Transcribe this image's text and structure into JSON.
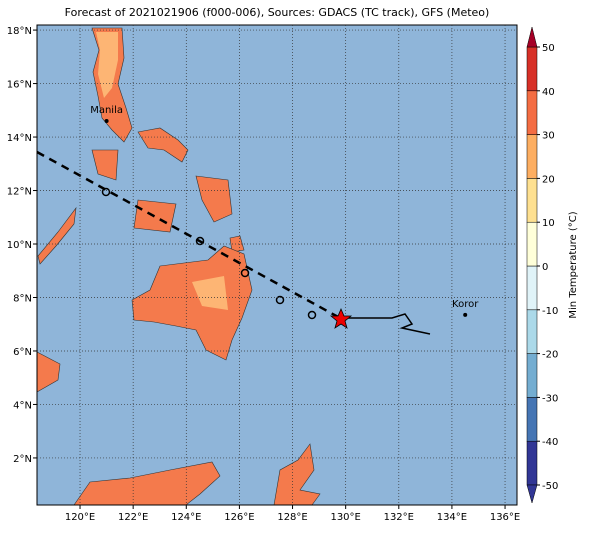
{
  "title": "Forecast of 2021021906 (f000-006), Sources: GDACS (TC track), GFS (Meteo)",
  "map": {
    "xlim": [
      118.38,
      136.45
    ],
    "ylim": [
      0.24,
      18.19
    ],
    "xticks": [
      {
        "value": 120,
        "label": "120°E"
      },
      {
        "value": 122,
        "label": "122°E"
      },
      {
        "value": 124,
        "label": "124°E"
      },
      {
        "value": 126,
        "label": "126°E"
      },
      {
        "value": 128,
        "label": "128°E"
      },
      {
        "value": 130,
        "label": "130°E"
      },
      {
        "value": 132,
        "label": "132°E"
      },
      {
        "value": 134,
        "label": "134°E"
      },
      {
        "value": 136,
        "label": "136°E"
      }
    ],
    "yticks": [
      {
        "value": 2,
        "label": "2°N"
      },
      {
        "value": 4,
        "label": "4°N"
      },
      {
        "value": 6,
        "label": "6°N"
      },
      {
        "value": 8,
        "label": "8°N"
      },
      {
        "value": 10,
        "label": "10°N"
      },
      {
        "value": 12,
        "label": "12°N"
      },
      {
        "value": 14,
        "label": "14°N"
      },
      {
        "value": 16,
        "label": "16°N"
      },
      {
        "value": 18,
        "label": "18°N"
      }
    ],
    "cities": [
      {
        "name": "Manila",
        "lon": 121,
        "lat": 14.6
      },
      {
        "name": "Koror",
        "lon": 134.5,
        "lat": 7.35
      }
    ]
  },
  "colorbar": {
    "label": "Min Temperature (°C)",
    "lim": [
      -50,
      50
    ],
    "ticks": [
      -50,
      -40,
      -30,
      -20,
      -10,
      0,
      10,
      20,
      30,
      40,
      50
    ],
    "colors": [
      "#313695",
      "#4575b4",
      "#74add1",
      "#abd9e9",
      "#e0f3f8",
      "#ffffd9",
      "#fee090",
      "#fdae61",
      "#f46d43",
      "#d73027",
      "#a50026"
    ]
  }
}
